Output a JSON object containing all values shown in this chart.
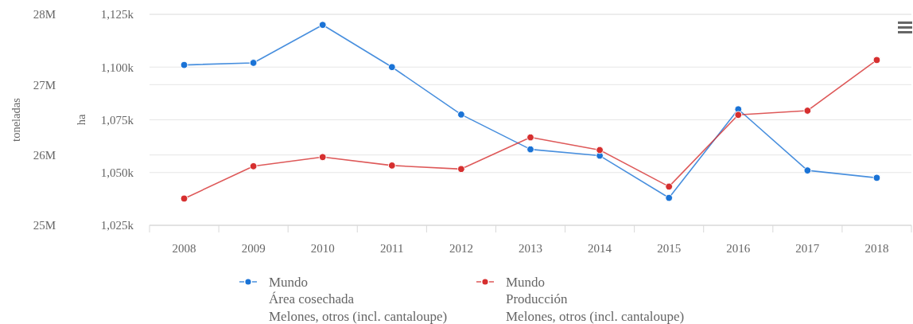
{
  "chart_data": {
    "type": "line",
    "categories": [
      "2008",
      "2009",
      "2010",
      "2011",
      "2012",
      "2013",
      "2014",
      "2015",
      "2016",
      "2017",
      "2018"
    ],
    "ylabel": "ha",
    "y2label": "toneladas",
    "ylim": [
      1025000,
      1125000
    ],
    "yticks": [
      {
        "value": 1025000,
        "label": "1,025k"
      },
      {
        "value": 1050000,
        "label": "1,050k"
      },
      {
        "value": 1075000,
        "label": "1,075k"
      },
      {
        "value": 1100000,
        "label": "1,100k"
      },
      {
        "value": 1125000,
        "label": "1,125k"
      }
    ],
    "y2lim": [
      25000000,
      28000000
    ],
    "y2ticks": [
      {
        "value": 25000000,
        "label": "25M"
      },
      {
        "value": 26000000,
        "label": "26M"
      },
      {
        "value": 27000000,
        "label": "27M"
      },
      {
        "value": 28000000,
        "label": "28M"
      }
    ],
    "series": [
      {
        "name": "Mundo\nÁrea cosechada\nMelones, otros (incl. cantaloupe)",
        "color": "#1a73d6",
        "values": [
          1101000,
          1102000,
          1120000,
          1100000,
          1077500,
          1061000,
          1058000,
          1038000,
          1080000,
          1051000,
          1047500
        ]
      },
      {
        "name": "Mundo\nProducción\nMelones, otros (incl. cantaloupe)",
        "color": "#d62f2f",
        "axis": "y2",
        "values": [
          25380000,
          25840000,
          25970000,
          25850000,
          25800000,
          26250000,
          26070000,
          25550000,
          26570000,
          26630000,
          27350000
        ]
      }
    ],
    "grid": true,
    "legend": "bottom",
    "marker": "circle"
  }
}
